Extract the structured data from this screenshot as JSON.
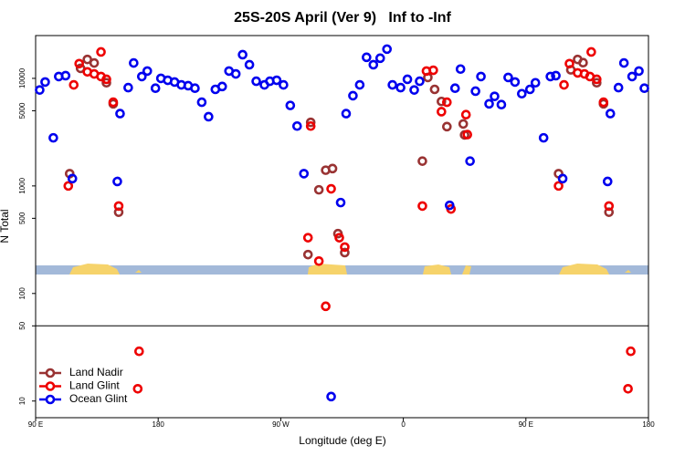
{
  "chart_data": {
    "type": "scatter",
    "title": "25S-20S April (Ver 9)   Inf to -Inf",
    "xlabel": "Longitude (deg E)",
    "ylabel": "N Total",
    "log_y": true,
    "legend": "lower left",
    "hline": 50,
    "xlim": [
      90,
      540
    ],
    "ylim": [
      7,
      25000
    ],
    "xticks": [
      {
        "value": 90,
        "label": "90 E"
      },
      {
        "value": 180,
        "label": "180"
      },
      {
        "value": 270,
        "label": "90 W"
      },
      {
        "value": 360,
        "label": "0"
      },
      {
        "value": 450,
        "label": "90 E"
      },
      {
        "value": 540,
        "label": "180"
      }
    ],
    "yticks": [
      10,
      50,
      100,
      500,
      1000,
      5000,
      10000
    ],
    "series": [
      {
        "name": "Land Nadir",
        "color": "#993333",
        "x": [
          115,
          123,
          128,
          133,
          142,
          147,
          151,
          290,
          292,
          298,
          303,
          308,
          312,
          317,
          374,
          378,
          383,
          388,
          392,
          404,
          405,
          474,
          483,
          488,
          492,
          502,
          507,
          511
        ],
        "values": [
          1300,
          12400,
          15000,
          13900,
          9100,
          5800,
          570,
          230,
          3900,
          920,
          1400,
          1450,
          360,
          240,
          1700,
          10200,
          7900,
          6100,
          3560,
          3770,
          2980,
          1300,
          12000,
          15000,
          14000,
          9100,
          5800,
          570
        ]
      },
      {
        "name": "Land Glint",
        "color": "#ee0000",
        "x": [
          114,
          118,
          122,
          128,
          133,
          138,
          138,
          142,
          147,
          151,
          166,
          165,
          290,
          292,
          298,
          303,
          307,
          313,
          317,
          374,
          377,
          382,
          388,
          392,
          395,
          406,
          407,
          474,
          478,
          482,
          488,
          493,
          498,
          497,
          502,
          507,
          511,
          527,
          525
        ],
        "values": [
          1000,
          8700,
          13700,
          11500,
          11000,
          17600,
          10400,
          9800,
          6000,
          650,
          29,
          13,
          330,
          3600,
          200,
          76,
          940,
          330,
          270,
          650,
          11700,
          11900,
          4900,
          6000,
          610,
          4600,
          3000,
          1000,
          8700,
          13700,
          11250,
          11000,
          17600,
          10400,
          9800,
          6000,
          650,
          29,
          13
        ]
      },
      {
        "name": "Ocean Glint",
        "color": "#0000ee",
        "x": [
          93,
          97,
          103,
          107,
          112,
          117,
          150,
          152,
          158,
          162,
          168,
          172,
          178,
          182,
          187,
          192,
          197,
          202,
          207,
          212,
          217,
          222,
          227,
          232,
          237,
          242,
          247,
          252,
          258,
          262,
          267,
          272,
          277,
          282,
          287,
          307,
          314,
          318,
          323,
          328,
          333,
          338,
          343,
          348,
          352,
          358,
          363,
          368,
          372,
          394,
          398,
          402,
          409,
          413,
          417,
          423,
          427,
          432,
          437,
          442,
          447,
          453,
          457,
          463,
          468,
          472,
          477,
          510,
          512,
          518,
          522,
          528,
          533,
          537
        ],
        "values": [
          7800,
          9250,
          2800,
          10400,
          10600,
          1170,
          1100,
          4700,
          8200,
          13900,
          10400,
          11700,
          8100,
          10000,
          9600,
          9250,
          8700,
          8550,
          8100,
          6000,
          4400,
          7900,
          8400,
          11700,
          11000,
          16600,
          13400,
          9400,
          8700,
          9400,
          9600,
          8700,
          5600,
          3600,
          1300,
          11,
          700,
          4700,
          6900,
          8700,
          15700,
          13400,
          15400,
          18700,
          8700,
          8200,
          9800,
          7800,
          9400,
          660,
          8100,
          12200,
          1700,
          7600,
          10400,
          5800,
          6800,
          5700,
          10200,
          9250,
          7200,
          7900,
          9100,
          2800,
          10400,
          10600,
          1170,
          1100,
          4700,
          8200,
          13900,
          10400,
          11700,
          8100
        ]
      }
    ]
  }
}
